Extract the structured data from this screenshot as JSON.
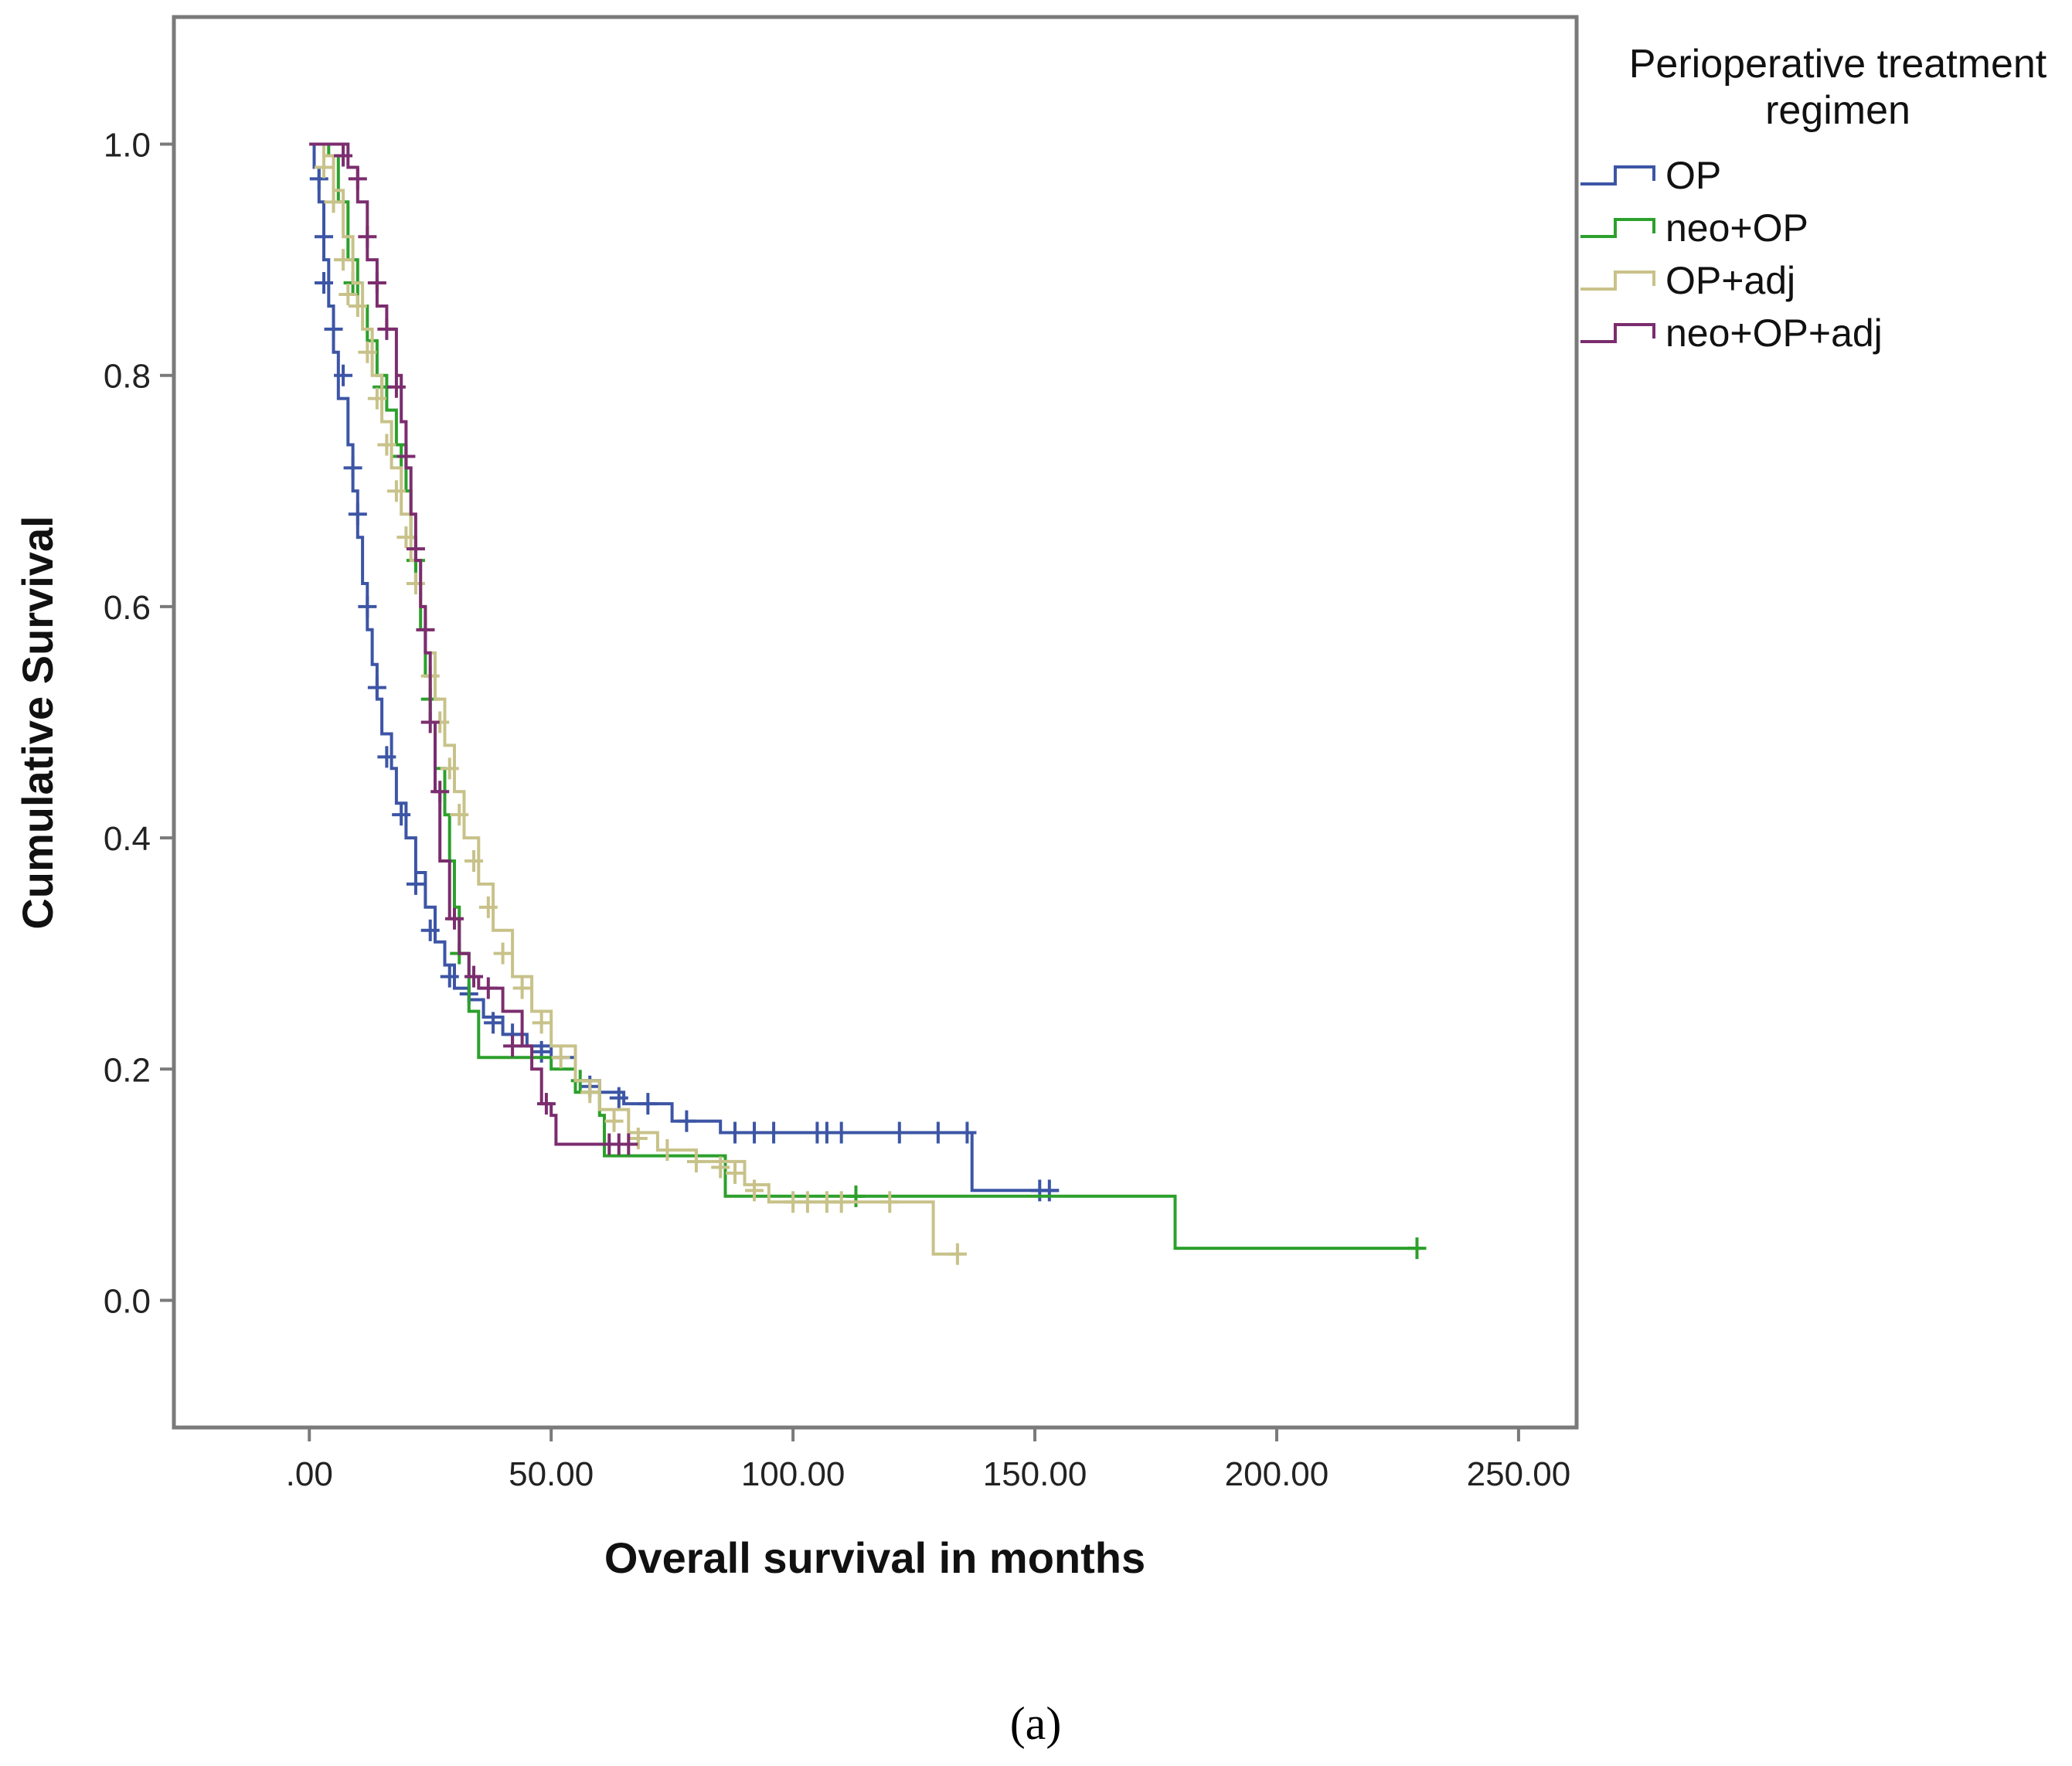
{
  "chart_data": {
    "type": "line",
    "subtype": "kaplan-meier step",
    "xlabel": "Overall survival in months",
    "ylabel": "Cumulative Survival",
    "xlim": [
      -28,
      262
    ],
    "ylim": [
      -0.11,
      1.11
    ],
    "x_ticks": [
      0,
      50,
      100,
      150,
      200,
      250
    ],
    "x_tick_labels": [
      ".00",
      "50.00",
      "100.00",
      "150.00",
      "200.00",
      "250.00"
    ],
    "y_ticks": [
      0,
      0.2,
      0.4,
      0.6,
      0.8,
      1.0
    ],
    "y_tick_labels": [
      "0.0",
      "0.2",
      "0.4",
      "0.6",
      "0.8",
      "1.0"
    ],
    "legend": {
      "title_lines": [
        "Perioperative treatment",
        "regimen"
      ],
      "placement": "right"
    },
    "grid": false,
    "caption": "(a)",
    "series": [
      {
        "name": "OP",
        "color": "#3c55a5",
        "points": [
          [
            0,
            1.0
          ],
          [
            1,
            0.98
          ],
          [
            2,
            0.95
          ],
          [
            3,
            0.9
          ],
          [
            4,
            0.86
          ],
          [
            5,
            0.82
          ],
          [
            6,
            0.78
          ],
          [
            8,
            0.74
          ],
          [
            9,
            0.7
          ],
          [
            10,
            0.66
          ],
          [
            11,
            0.62
          ],
          [
            12,
            0.58
          ],
          [
            13,
            0.55
          ],
          [
            14,
            0.52
          ],
          [
            15,
            0.49
          ],
          [
            17,
            0.46
          ],
          [
            18,
            0.43
          ],
          [
            20,
            0.4
          ],
          [
            22,
            0.37
          ],
          [
            24,
            0.34
          ],
          [
            26,
            0.31
          ],
          [
            28,
            0.29
          ],
          [
            30,
            0.27
          ],
          [
            33,
            0.26
          ],
          [
            36,
            0.245
          ],
          [
            40,
            0.23
          ],
          [
            45,
            0.22
          ],
          [
            50,
            0.21
          ],
          [
            55,
            0.19
          ],
          [
            60,
            0.18
          ],
          [
            65,
            0.17
          ],
          [
            75,
            0.155
          ],
          [
            85,
            0.145
          ],
          [
            137,
            0.145
          ],
          [
            137,
            0.095
          ],
          [
            155,
            0.095
          ]
        ],
        "censored": [
          [
            2,
            0.97
          ],
          [
            3,
            0.92
          ],
          [
            3,
            0.88
          ],
          [
            5,
            0.84
          ],
          [
            7,
            0.8
          ],
          [
            9,
            0.72
          ],
          [
            10,
            0.68
          ],
          [
            12,
            0.6
          ],
          [
            14,
            0.53
          ],
          [
            16,
            0.47
          ],
          [
            19,
            0.42
          ],
          [
            22,
            0.36
          ],
          [
            25,
            0.32
          ],
          [
            29,
            0.28
          ],
          [
            33,
            0.265
          ],
          [
            38,
            0.24
          ],
          [
            42,
            0.23
          ],
          [
            48,
            0.215
          ],
          [
            58,
            0.185
          ],
          [
            64,
            0.175
          ],
          [
            70,
            0.17
          ],
          [
            78,
            0.155
          ],
          [
            88,
            0.145
          ],
          [
            92,
            0.145
          ],
          [
            96,
            0.145
          ],
          [
            105,
            0.145
          ],
          [
            107,
            0.145
          ],
          [
            110,
            0.145
          ],
          [
            122,
            0.145
          ],
          [
            130,
            0.145
          ],
          [
            136,
            0.145
          ],
          [
            151,
            0.095
          ],
          [
            153,
            0.095
          ]
        ]
      },
      {
        "name": "neo+OP",
        "color": "#2ca02c",
        "points": [
          [
            0,
            1.0
          ],
          [
            4,
            0.99
          ],
          [
            6,
            0.95
          ],
          [
            8,
            0.9
          ],
          [
            10,
            0.86
          ],
          [
            12,
            0.83
          ],
          [
            14,
            0.8
          ],
          [
            16,
            0.77
          ],
          [
            18,
            0.74
          ],
          [
            20,
            0.7
          ],
          [
            21,
            0.66
          ],
          [
            22,
            0.62
          ],
          [
            23,
            0.58
          ],
          [
            24,
            0.54
          ],
          [
            25,
            0.5
          ],
          [
            26,
            0.46
          ],
          [
            28,
            0.42
          ],
          [
            29,
            0.38
          ],
          [
            30,
            0.34
          ],
          [
            31,
            0.3
          ],
          [
            33,
            0.25
          ],
          [
            35,
            0.21
          ],
          [
            45,
            0.21
          ],
          [
            50,
            0.2
          ],
          [
            55,
            0.18
          ],
          [
            60,
            0.16
          ],
          [
            61,
            0.125
          ],
          [
            75,
            0.125
          ],
          [
            86,
            0.09
          ],
          [
            179,
            0.09
          ],
          [
            179,
            0.045
          ],
          [
            230,
            0.045
          ]
        ],
        "censored": [
          [
            9,
            0.88
          ],
          [
            15,
            0.79
          ],
          [
            19,
            0.73
          ],
          [
            22,
            0.64
          ],
          [
            25,
            0.52
          ],
          [
            31,
            0.3
          ],
          [
            56,
            0.19
          ],
          [
            113,
            0.09
          ],
          [
            229,
            0.045
          ]
        ]
      },
      {
        "name": "OP+adj",
        "color": "#c8c28a",
        "points": [
          [
            0,
            1.0
          ],
          [
            3,
            0.99
          ],
          [
            5,
            0.96
          ],
          [
            7,
            0.92
          ],
          [
            9,
            0.88
          ],
          [
            11,
            0.84
          ],
          [
            13,
            0.8
          ],
          [
            15,
            0.76
          ],
          [
            17,
            0.72
          ],
          [
            19,
            0.68
          ],
          [
            21,
            0.64
          ],
          [
            23,
            0.6
          ],
          [
            24,
            0.56
          ],
          [
            26,
            0.52
          ],
          [
            28,
            0.48
          ],
          [
            30,
            0.44
          ],
          [
            32,
            0.4
          ],
          [
            35,
            0.36
          ],
          [
            38,
            0.32
          ],
          [
            42,
            0.28
          ],
          [
            46,
            0.25
          ],
          [
            50,
            0.22
          ],
          [
            55,
            0.19
          ],
          [
            60,
            0.165
          ],
          [
            66,
            0.145
          ],
          [
            72,
            0.13
          ],
          [
            80,
            0.12
          ],
          [
            90,
            0.1
          ],
          [
            95,
            0.085
          ],
          [
            120,
            0.085
          ],
          [
            129,
            0.085
          ],
          [
            129,
            0.04
          ],
          [
            135,
            0.04
          ]
        ],
        "censored": [
          [
            3,
            0.98
          ],
          [
            5,
            0.95
          ],
          [
            7,
            0.9
          ],
          [
            8,
            0.87
          ],
          [
            10,
            0.86
          ],
          [
            12,
            0.82
          ],
          [
            14,
            0.78
          ],
          [
            16,
            0.74
          ],
          [
            18,
            0.7
          ],
          [
            20,
            0.66
          ],
          [
            22,
            0.62
          ],
          [
            24,
            0.58
          ],
          [
            25,
            0.54
          ],
          [
            27,
            0.5
          ],
          [
            29,
            0.46
          ],
          [
            31,
            0.42
          ],
          [
            34,
            0.38
          ],
          [
            37,
            0.34
          ],
          [
            40,
            0.3
          ],
          [
            44,
            0.27
          ],
          [
            48,
            0.24
          ],
          [
            52,
            0.21
          ],
          [
            58,
            0.18
          ],
          [
            63,
            0.155
          ],
          [
            68,
            0.14
          ],
          [
            74,
            0.13
          ],
          [
            80,
            0.12
          ],
          [
            85,
            0.115
          ],
          [
            88,
            0.11
          ],
          [
            92,
            0.095
          ],
          [
            100,
            0.085
          ],
          [
            103,
            0.085
          ],
          [
            107,
            0.085
          ],
          [
            110,
            0.085
          ],
          [
            120,
            0.085
          ],
          [
            134,
            0.04
          ]
        ]
      },
      {
        "name": "neo+OP+adj",
        "color": "#7b2d6e",
        "points": [
          [
            0,
            1.0
          ],
          [
            6,
            1.0
          ],
          [
            8,
            0.98
          ],
          [
            10,
            0.95
          ],
          [
            12,
            0.9
          ],
          [
            14,
            0.86
          ],
          [
            16,
            0.84
          ],
          [
            18,
            0.8
          ],
          [
            19,
            0.76
          ],
          [
            20,
            0.72
          ],
          [
            21,
            0.68
          ],
          [
            22,
            0.64
          ],
          [
            23,
            0.6
          ],
          [
            24,
            0.56
          ],
          [
            25,
            0.5
          ],
          [
            26,
            0.44
          ],
          [
            27,
            0.38
          ],
          [
            29,
            0.33
          ],
          [
            31,
            0.3
          ],
          [
            33,
            0.28
          ],
          [
            35,
            0.27
          ],
          [
            40,
            0.25
          ],
          [
            44,
            0.22
          ],
          [
            46,
            0.2
          ],
          [
            48,
            0.17
          ],
          [
            50,
            0.16
          ],
          [
            51,
            0.135
          ],
          [
            60,
            0.135
          ],
          [
            66,
            0.135
          ]
        ],
        "censored": [
          [
            7,
            0.99
          ],
          [
            10,
            0.97
          ],
          [
            12,
            0.92
          ],
          [
            14,
            0.88
          ],
          [
            16,
            0.84
          ],
          [
            18,
            0.79
          ],
          [
            20,
            0.73
          ],
          [
            22,
            0.65
          ],
          [
            24,
            0.58
          ],
          [
            25,
            0.5
          ],
          [
            27,
            0.44
          ],
          [
            30,
            0.33
          ],
          [
            34,
            0.28
          ],
          [
            37,
            0.27
          ],
          [
            42,
            0.22
          ],
          [
            49,
            0.17
          ],
          [
            62,
            0.135
          ],
          [
            64,
            0.135
          ],
          [
            66,
            0.135
          ]
        ]
      }
    ]
  }
}
